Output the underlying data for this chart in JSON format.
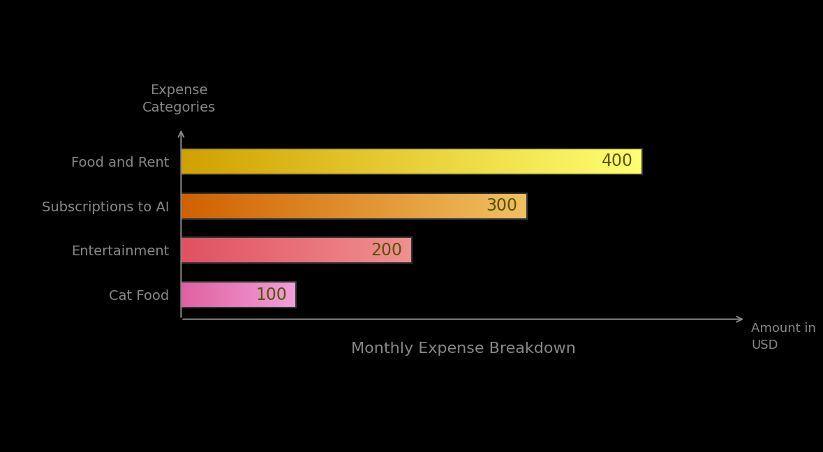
{
  "categories": [
    "Cat Food",
    "Entertainment",
    "Subscriptions to AI",
    "Food and Rent"
  ],
  "values": [
    100,
    200,
    300,
    400
  ],
  "bar_colors_left": [
    "#E060A0",
    "#E05060",
    "#D06000",
    "#D0A000"
  ],
  "bar_colors_right": [
    "#F0A0D8",
    "#F09090",
    "#F0C060",
    "#FFFF70"
  ],
  "value_labels": [
    "100",
    "200",
    "300",
    "400"
  ],
  "title": "Monthly Expense Breakdown",
  "ylabel": "Expense\nCategories",
  "xlabel": "Amount in\nUSD",
  "background_color": "#000000",
  "text_color": "#888888",
  "label_color": "#555500",
  "bar_height": 0.58,
  "bar_edge_color": "#333333",
  "xlim": [
    0,
    500
  ],
  "arrow_color": "#888888"
}
